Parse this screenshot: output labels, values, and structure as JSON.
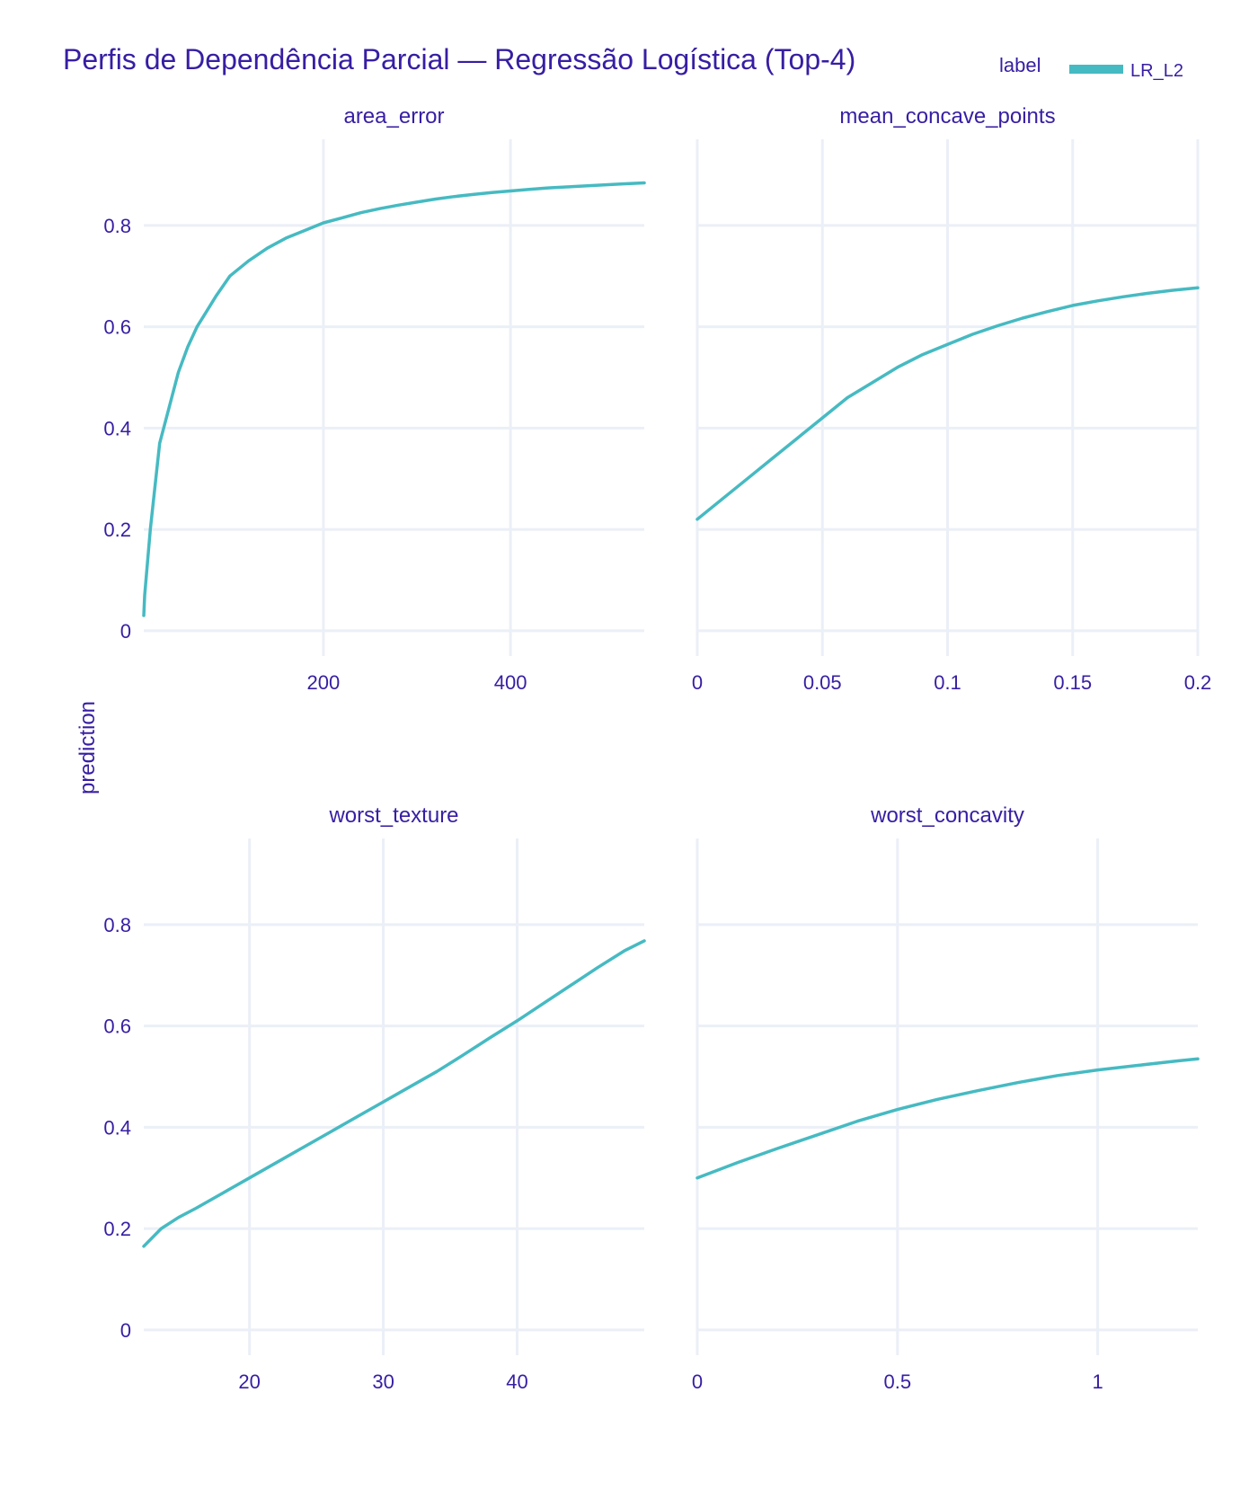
{
  "colors": {
    "text": "#371ea3",
    "grid": "#ebeff7",
    "series": "#46bac2",
    "background": "#ffffff"
  },
  "chart_data": {
    "type": "line",
    "title": "Perfis de Dependência Parcial — Regressão Logística (Top-4)",
    "ylabel": "prediction",
    "legend": {
      "title": "label",
      "entries": [
        "LR_L2"
      ],
      "position": "top-right"
    },
    "grid": true,
    "panels": [
      {
        "name": "area_error",
        "xlim": [
          8,
          543
        ],
        "ylim": [
          -0.05,
          0.97
        ],
        "xticks": [
          200,
          400
        ],
        "yticks": [
          0,
          0.2,
          0.4,
          0.6,
          0.8
        ],
        "series": [
          {
            "name": "LR_L2",
            "x": [
              8,
              9,
              15,
              25,
              35,
              45,
              55,
              65,
              75,
              85,
              100,
              120,
              140,
              160,
              180,
              200,
              220,
              240,
              260,
              280,
              300,
              320,
              340,
              360,
              380,
              400,
              420,
              440,
              460,
              480,
              500,
              520,
              543
            ],
            "y": [
              0.03,
              0.07,
              0.2,
              0.37,
              0.44,
              0.51,
              0.56,
              0.6,
              0.63,
              0.66,
              0.7,
              0.73,
              0.755,
              0.775,
              0.79,
              0.805,
              0.815,
              0.825,
              0.833,
              0.84,
              0.846,
              0.852,
              0.857,
              0.861,
              0.865,
              0.868,
              0.871,
              0.874,
              0.876,
              0.878,
              0.88,
              0.882,
              0.884
            ]
          }
        ]
      },
      {
        "name": "mean_concave_points",
        "xlim": [
          0,
          0.2
        ],
        "ylim": [
          -0.05,
          0.97
        ],
        "xticks": [
          0,
          0.05,
          0.1,
          0.15,
          0.2
        ],
        "yticks": [
          0,
          0.2,
          0.4,
          0.6,
          0.8
        ],
        "series": [
          {
            "name": "LR_L2",
            "x": [
              0,
              0.01,
              0.02,
              0.03,
              0.04,
              0.05,
              0.06,
              0.07,
              0.08,
              0.09,
              0.1,
              0.11,
              0.12,
              0.13,
              0.14,
              0.15,
              0.16,
              0.17,
              0.18,
              0.19,
              0.2
            ],
            "y": [
              0.22,
              0.26,
              0.3,
              0.34,
              0.38,
              0.42,
              0.46,
              0.49,
              0.52,
              0.545,
              0.565,
              0.585,
              0.602,
              0.617,
              0.63,
              0.642,
              0.651,
              0.659,
              0.666,
              0.672,
              0.677
            ]
          }
        ]
      },
      {
        "name": "worst_texture",
        "xlim": [
          12.1,
          49.5
        ],
        "ylim": [
          -0.05,
          0.97
        ],
        "xticks": [
          20,
          30,
          40
        ],
        "yticks": [
          0,
          0.2,
          0.4,
          0.6,
          0.8
        ],
        "series": [
          {
            "name": "LR_L2",
            "x": [
              12.1,
              13.4,
              14.7,
              16,
              18,
              20,
              22,
              24,
              26,
              28,
              30,
              32,
              34,
              36,
              38,
              40,
              42,
              44,
              46,
              48,
              49.5
            ],
            "y": [
              0.165,
              0.2,
              0.222,
              0.24,
              0.27,
              0.3,
              0.33,
              0.36,
              0.39,
              0.42,
              0.45,
              0.48,
              0.51,
              0.543,
              0.577,
              0.61,
              0.645,
              0.68,
              0.715,
              0.748,
              0.768
            ]
          }
        ]
      },
      {
        "name": "worst_concavity",
        "xlim": [
          0,
          1.25
        ],
        "ylim": [
          -0.05,
          0.97
        ],
        "xticks": [
          0,
          0.5,
          1
        ],
        "yticks": [
          0,
          0.2,
          0.4,
          0.6,
          0.8
        ],
        "series": [
          {
            "name": "LR_L2",
            "x": [
              0,
              0.1,
              0.2,
              0.3,
              0.4,
              0.5,
              0.6,
              0.7,
              0.8,
              0.9,
              1.0,
              1.1,
              1.2,
              1.25
            ],
            "y": [
              0.3,
              0.33,
              0.358,
              0.385,
              0.412,
              0.435,
              0.455,
              0.472,
              0.488,
              0.502,
              0.513,
              0.522,
              0.531,
              0.535
            ]
          }
        ]
      }
    ]
  }
}
